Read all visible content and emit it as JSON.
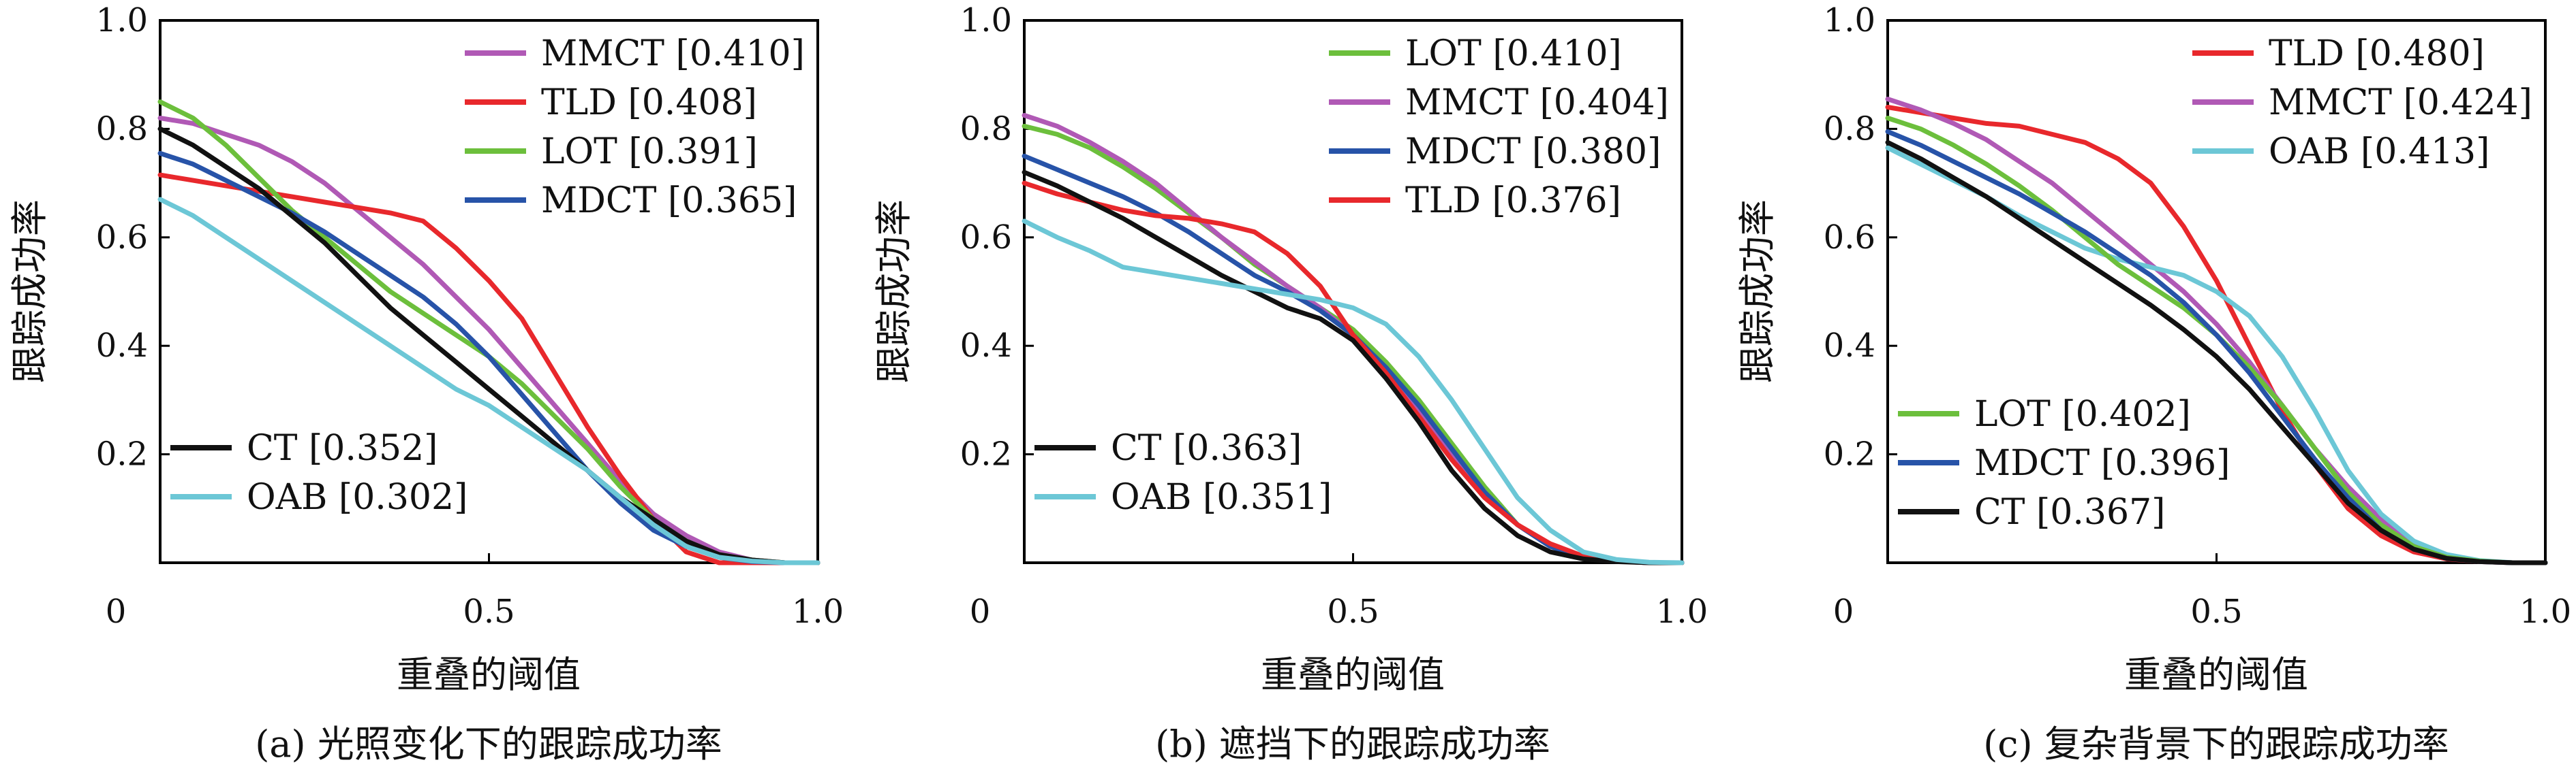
{
  "colors": {
    "MMCT": "#b059b5",
    "TLD": "#e8282c",
    "LOT": "#6cbf3c",
    "MDCT": "#2753a8",
    "CT": "#111111",
    "OAB": "#6cc7d6"
  },
  "chart_data": [
    {
      "type": "line",
      "caption": "(a) 光照变化下的跟踪成功率",
      "xlabel": "重叠的阈值",
      "ylabel": "跟踪成功率",
      "xlim": [
        0,
        1
      ],
      "ylim": [
        0,
        1
      ],
      "xticks": [
        {
          "v": 0,
          "label": "0"
        },
        {
          "v": 0.5,
          "label": "0.5"
        },
        {
          "v": 1,
          "label": "1.0"
        }
      ],
      "yticks": [
        {
          "v": 0.2,
          "label": "0.2"
        },
        {
          "v": 0.4,
          "label": "0.4"
        },
        {
          "v": 0.6,
          "label": "0.6"
        },
        {
          "v": 0.8,
          "label": "0.8"
        },
        {
          "v": 1,
          "label": "1.0"
        }
      ],
      "legend_groups": [
        {
          "position": "top-right",
          "entries": [
            "MMCT",
            "TLD",
            "LOT",
            "MDCT"
          ]
        },
        {
          "position": "bottom-left",
          "entries": [
            "CT",
            "OAB"
          ]
        }
      ],
      "series": [
        {
          "name": "MMCT",
          "label": "MMCT [0.410]",
          "x": [
            0,
            0.05,
            0.1,
            0.15,
            0.2,
            0.25,
            0.3,
            0.35,
            0.4,
            0.45,
            0.5,
            0.55,
            0.6,
            0.65,
            0.7,
            0.75,
            0.8,
            0.85,
            0.9,
            0.95,
            1.0
          ],
          "y": [
            0.82,
            0.81,
            0.79,
            0.77,
            0.74,
            0.7,
            0.65,
            0.6,
            0.55,
            0.49,
            0.43,
            0.36,
            0.29,
            0.22,
            0.15,
            0.09,
            0.05,
            0.02,
            0.005,
            0.0,
            0.0
          ]
        },
        {
          "name": "TLD",
          "label": "TLD [0.408]",
          "x": [
            0,
            0.05,
            0.1,
            0.15,
            0.2,
            0.25,
            0.3,
            0.35,
            0.4,
            0.45,
            0.5,
            0.55,
            0.6,
            0.65,
            0.7,
            0.75,
            0.8,
            0.85,
            0.9,
            0.95,
            1.0
          ],
          "y": [
            0.715,
            0.705,
            0.695,
            0.685,
            0.675,
            0.665,
            0.655,
            0.645,
            0.63,
            0.58,
            0.52,
            0.45,
            0.35,
            0.25,
            0.16,
            0.08,
            0.02,
            0.0,
            0.0,
            0.0,
            0.0
          ]
        },
        {
          "name": "LOT",
          "label": "LOT [0.391]",
          "x": [
            0,
            0.05,
            0.1,
            0.15,
            0.2,
            0.25,
            0.3,
            0.35,
            0.4,
            0.45,
            0.5,
            0.55,
            0.6,
            0.65,
            0.7,
            0.75,
            0.8,
            0.85,
            0.9,
            0.95,
            1.0
          ],
          "y": [
            0.85,
            0.82,
            0.77,
            0.71,
            0.65,
            0.6,
            0.55,
            0.5,
            0.46,
            0.42,
            0.38,
            0.33,
            0.27,
            0.21,
            0.14,
            0.08,
            0.04,
            0.015,
            0.005,
            0.0,
            0.0
          ]
        },
        {
          "name": "MDCT",
          "label": "MDCT [0.365]",
          "x": [
            0,
            0.05,
            0.1,
            0.15,
            0.2,
            0.25,
            0.3,
            0.35,
            0.4,
            0.45,
            0.5,
            0.55,
            0.6,
            0.65,
            0.7,
            0.75,
            0.8,
            0.85,
            0.9,
            0.95,
            1.0
          ],
          "y": [
            0.755,
            0.735,
            0.705,
            0.675,
            0.645,
            0.61,
            0.57,
            0.53,
            0.49,
            0.44,
            0.38,
            0.31,
            0.24,
            0.17,
            0.11,
            0.06,
            0.03,
            0.01,
            0.002,
            0.0,
            0.0
          ]
        },
        {
          "name": "CT",
          "label": "CT [0.352]",
          "x": [
            0,
            0.05,
            0.1,
            0.15,
            0.2,
            0.25,
            0.3,
            0.35,
            0.4,
            0.45,
            0.5,
            0.55,
            0.6,
            0.65,
            0.7,
            0.75,
            0.8,
            0.85,
            0.9,
            0.95,
            1.0
          ],
          "y": [
            0.8,
            0.77,
            0.73,
            0.69,
            0.64,
            0.59,
            0.53,
            0.47,
            0.42,
            0.37,
            0.32,
            0.27,
            0.22,
            0.17,
            0.12,
            0.08,
            0.04,
            0.015,
            0.005,
            0.0,
            0.0
          ]
        },
        {
          "name": "OAB",
          "label": "OAB [0.302]",
          "x": [
            0,
            0.05,
            0.1,
            0.15,
            0.2,
            0.25,
            0.3,
            0.35,
            0.4,
            0.45,
            0.5,
            0.55,
            0.6,
            0.65,
            0.7,
            0.75,
            0.8,
            0.85,
            0.9,
            0.95,
            1.0
          ],
          "y": [
            0.67,
            0.64,
            0.6,
            0.56,
            0.52,
            0.48,
            0.44,
            0.4,
            0.36,
            0.32,
            0.29,
            0.25,
            0.21,
            0.17,
            0.12,
            0.07,
            0.03,
            0.01,
            0.003,
            0.0,
            0.0
          ]
        }
      ]
    },
    {
      "type": "line",
      "caption": "(b) 遮挡下的跟踪成功率",
      "xlabel": "重叠的阈值",
      "ylabel": "跟踪成功率",
      "xlim": [
        0,
        1
      ],
      "ylim": [
        0,
        1
      ],
      "xticks": [
        {
          "v": 0,
          "label": "0"
        },
        {
          "v": 0.5,
          "label": "0.5"
        },
        {
          "v": 1,
          "label": "1.0"
        }
      ],
      "yticks": [
        {
          "v": 0.2,
          "label": "0.2"
        },
        {
          "v": 0.4,
          "label": "0.4"
        },
        {
          "v": 0.6,
          "label": "0.6"
        },
        {
          "v": 0.8,
          "label": "0.8"
        },
        {
          "v": 1,
          "label": "1.0"
        }
      ],
      "legend_groups": [
        {
          "position": "top-right",
          "entries": [
            "LOT",
            "MMCT",
            "MDCT",
            "TLD"
          ]
        },
        {
          "position": "bottom-left",
          "entries": [
            "CT",
            "OAB"
          ]
        }
      ],
      "series": [
        {
          "name": "LOT",
          "label": "LOT [0.410]",
          "x": [
            0,
            0.05,
            0.1,
            0.15,
            0.2,
            0.25,
            0.3,
            0.35,
            0.4,
            0.45,
            0.5,
            0.55,
            0.6,
            0.65,
            0.7,
            0.75,
            0.8,
            0.85,
            0.9,
            0.95,
            1.0
          ],
          "y": [
            0.805,
            0.79,
            0.765,
            0.73,
            0.69,
            0.645,
            0.6,
            0.55,
            0.51,
            0.47,
            0.43,
            0.37,
            0.3,
            0.22,
            0.14,
            0.07,
            0.03,
            0.01,
            0.003,
            0.0,
            0.0
          ]
        },
        {
          "name": "MMCT",
          "label": "MMCT [0.404]",
          "x": [
            0,
            0.05,
            0.1,
            0.15,
            0.2,
            0.25,
            0.3,
            0.35,
            0.4,
            0.45,
            0.5,
            0.55,
            0.6,
            0.65,
            0.7,
            0.75,
            0.8,
            0.85,
            0.9,
            0.95,
            1.0
          ],
          "y": [
            0.825,
            0.805,
            0.775,
            0.74,
            0.7,
            0.65,
            0.6,
            0.555,
            0.51,
            0.47,
            0.42,
            0.35,
            0.28,
            0.2,
            0.13,
            0.07,
            0.03,
            0.01,
            0.003,
            0.0,
            0.0
          ]
        },
        {
          "name": "MDCT",
          "label": "MDCT [0.380]",
          "x": [
            0,
            0.05,
            0.1,
            0.15,
            0.2,
            0.25,
            0.3,
            0.35,
            0.4,
            0.45,
            0.5,
            0.55,
            0.6,
            0.65,
            0.7,
            0.75,
            0.8,
            0.85,
            0.9,
            0.95,
            1.0
          ],
          "y": [
            0.75,
            0.725,
            0.7,
            0.675,
            0.645,
            0.61,
            0.57,
            0.53,
            0.5,
            0.465,
            0.42,
            0.36,
            0.29,
            0.21,
            0.13,
            0.07,
            0.03,
            0.01,
            0.003,
            0.0,
            0.0
          ]
        },
        {
          "name": "TLD",
          "label": "TLD [0.376]",
          "x": [
            0,
            0.05,
            0.1,
            0.15,
            0.2,
            0.25,
            0.3,
            0.35,
            0.4,
            0.45,
            0.5,
            0.55,
            0.6,
            0.65,
            0.7,
            0.75,
            0.8,
            0.85,
            0.9,
            0.95,
            1.0
          ],
          "y": [
            0.7,
            0.68,
            0.665,
            0.65,
            0.64,
            0.635,
            0.625,
            0.61,
            0.57,
            0.51,
            0.42,
            0.35,
            0.27,
            0.19,
            0.12,
            0.07,
            0.035,
            0.012,
            0.003,
            0.0,
            0.0
          ]
        },
        {
          "name": "CT",
          "label": "CT [0.363]",
          "x": [
            0,
            0.05,
            0.1,
            0.15,
            0.2,
            0.25,
            0.3,
            0.35,
            0.4,
            0.45,
            0.5,
            0.55,
            0.6,
            0.65,
            0.7,
            0.75,
            0.8,
            0.85,
            0.9,
            0.95,
            1.0
          ],
          "y": [
            0.72,
            0.695,
            0.665,
            0.635,
            0.6,
            0.565,
            0.53,
            0.5,
            0.47,
            0.45,
            0.41,
            0.34,
            0.26,
            0.17,
            0.1,
            0.05,
            0.02,
            0.007,
            0.002,
            0.0,
            0.0
          ]
        },
        {
          "name": "OAB",
          "label": "OAB [0.351]",
          "x": [
            0,
            0.05,
            0.1,
            0.15,
            0.2,
            0.25,
            0.3,
            0.35,
            0.4,
            0.45,
            0.5,
            0.55,
            0.6,
            0.65,
            0.7,
            0.75,
            0.8,
            0.85,
            0.9,
            0.95,
            1.0
          ],
          "y": [
            0.63,
            0.6,
            0.575,
            0.545,
            0.535,
            0.525,
            0.515,
            0.505,
            0.495,
            0.485,
            0.47,
            0.44,
            0.38,
            0.3,
            0.21,
            0.12,
            0.06,
            0.02,
            0.006,
            0.001,
            0.0
          ]
        }
      ]
    },
    {
      "type": "line",
      "caption": "(c) 复杂背景下的跟踪成功率",
      "xlabel": "重叠的阈值",
      "ylabel": "跟踪成功率",
      "xlim": [
        0,
        1
      ],
      "ylim": [
        0,
        1
      ],
      "xticks": [
        {
          "v": 0,
          "label": "0"
        },
        {
          "v": 0.5,
          "label": "0.5"
        },
        {
          "v": 1,
          "label": "1.0"
        }
      ],
      "yticks": [
        {
          "v": 0.2,
          "label": "0.2"
        },
        {
          "v": 0.4,
          "label": "0.4"
        },
        {
          "v": 0.6,
          "label": "0.6"
        },
        {
          "v": 0.8,
          "label": "0.8"
        },
        {
          "v": 1,
          "label": "1.0"
        }
      ],
      "legend_groups": [
        {
          "position": "top-right",
          "entries": [
            "TLD",
            "MMCT",
            "OAB"
          ]
        },
        {
          "position": "bottom-left",
          "entries": [
            "LOT",
            "MDCT",
            "CT"
          ]
        }
      ],
      "series": [
        {
          "name": "TLD",
          "label": "TLD [0.480]",
          "x": [
            0,
            0.05,
            0.1,
            0.15,
            0.2,
            0.25,
            0.3,
            0.35,
            0.4,
            0.45,
            0.5,
            0.55,
            0.6,
            0.65,
            0.7,
            0.75,
            0.8,
            0.85,
            0.9,
            0.95,
            1.0
          ],
          "y": [
            0.84,
            0.83,
            0.82,
            0.81,
            0.805,
            0.79,
            0.775,
            0.745,
            0.7,
            0.62,
            0.52,
            0.4,
            0.28,
            0.18,
            0.1,
            0.05,
            0.02,
            0.007,
            0.002,
            0.0,
            0.0
          ]
        },
        {
          "name": "MMCT",
          "label": "MMCT [0.424]",
          "x": [
            0,
            0.05,
            0.1,
            0.15,
            0.2,
            0.25,
            0.3,
            0.35,
            0.4,
            0.45,
            0.5,
            0.55,
            0.6,
            0.65,
            0.7,
            0.75,
            0.8,
            0.85,
            0.9,
            0.95,
            1.0
          ],
          "y": [
            0.855,
            0.835,
            0.81,
            0.78,
            0.74,
            0.7,
            0.65,
            0.6,
            0.55,
            0.5,
            0.44,
            0.37,
            0.29,
            0.21,
            0.14,
            0.08,
            0.035,
            0.012,
            0.003,
            0.0,
            0.0
          ]
        },
        {
          "name": "OAB",
          "label": "OAB [0.413]",
          "x": [
            0,
            0.05,
            0.1,
            0.15,
            0.2,
            0.25,
            0.3,
            0.35,
            0.4,
            0.45,
            0.5,
            0.55,
            0.6,
            0.65,
            0.7,
            0.75,
            0.8,
            0.85,
            0.9,
            0.95,
            1.0
          ],
          "y": [
            0.765,
            0.735,
            0.705,
            0.675,
            0.64,
            0.61,
            0.58,
            0.56,
            0.545,
            0.53,
            0.5,
            0.455,
            0.38,
            0.28,
            0.17,
            0.09,
            0.04,
            0.015,
            0.004,
            0.0,
            0.0
          ]
        },
        {
          "name": "LOT",
          "label": "LOT [0.402]",
          "x": [
            0,
            0.05,
            0.1,
            0.15,
            0.2,
            0.25,
            0.3,
            0.35,
            0.4,
            0.45,
            0.5,
            0.55,
            0.6,
            0.65,
            0.7,
            0.75,
            0.8,
            0.85,
            0.9,
            0.95,
            1.0
          ],
          "y": [
            0.82,
            0.8,
            0.77,
            0.735,
            0.695,
            0.65,
            0.6,
            0.55,
            0.51,
            0.47,
            0.42,
            0.36,
            0.29,
            0.21,
            0.13,
            0.07,
            0.03,
            0.01,
            0.003,
            0.0,
            0.0
          ]
        },
        {
          "name": "MDCT",
          "label": "MDCT [0.396]",
          "x": [
            0,
            0.05,
            0.1,
            0.15,
            0.2,
            0.25,
            0.3,
            0.35,
            0.4,
            0.45,
            0.5,
            0.55,
            0.6,
            0.65,
            0.7,
            0.75,
            0.8,
            0.85,
            0.9,
            0.95,
            1.0
          ],
          "y": [
            0.795,
            0.77,
            0.74,
            0.71,
            0.68,
            0.645,
            0.61,
            0.57,
            0.53,
            0.48,
            0.42,
            0.35,
            0.27,
            0.19,
            0.12,
            0.06,
            0.025,
            0.008,
            0.002,
            0.0,
            0.0
          ]
        },
        {
          "name": "CT",
          "label": "CT [0.367]",
          "x": [
            0,
            0.05,
            0.1,
            0.15,
            0.2,
            0.25,
            0.3,
            0.35,
            0.4,
            0.45,
            0.5,
            0.55,
            0.6,
            0.65,
            0.7,
            0.75,
            0.8,
            0.85,
            0.9,
            0.95,
            1.0
          ],
          "y": [
            0.775,
            0.745,
            0.71,
            0.675,
            0.635,
            0.595,
            0.555,
            0.515,
            0.475,
            0.43,
            0.38,
            0.32,
            0.25,
            0.18,
            0.11,
            0.06,
            0.025,
            0.008,
            0.002,
            0.0,
            0.0
          ]
        }
      ]
    }
  ]
}
